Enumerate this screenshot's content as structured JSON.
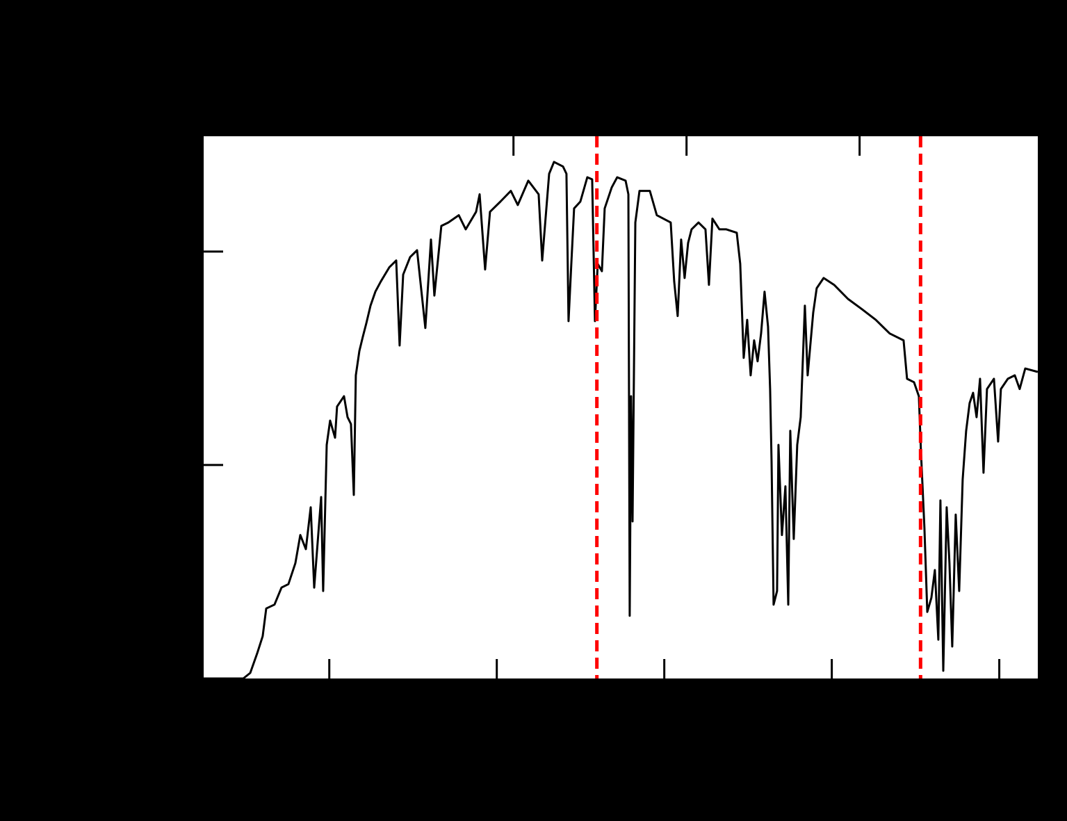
{
  "chart_data": {
    "type": "line",
    "color": "#000000",
    "x": [
      250,
      297.3,
      305.6,
      313.9,
      320.5,
      324.7,
      334.6,
      343,
      351.2,
      359.5,
      365.4,
      372,
      377.8,
      382,
      386.1,
      390.3,
      392.7,
      396.9,
      401,
      406.9,
      409.3,
      417.6,
      421.8,
      425.9,
      429.3,
      431.7,
      435.9,
      440,
      444.2,
      449.2,
      455,
      461.6,
      471.6,
      479.9,
      484,
      488.2,
      496.5,
      504.8,
      514.7,
      521.4,
      525.5,
      533.8,
      542.1,
      554.6,
      562.9,
      575.3,
      579.5,
      586.1,
      591.9,
      604.3,
      616.8,
      625.1,
      637.6,
      650,
      654.2,
      662.5,
      668.3,
      679.1,
      683.2,
      685.7,
      689,
      692.3,
      699.8,
      708.1,
      713.9,
      717.2,
      720.5,
      725.5,
      728.8,
      737.2,
      743.8,
      753.8,
      757.1,
      758.7,
      760.4,
      762.1,
      765.4,
      770.4,
      782.8,
      791.1,
      807.7,
      811.8,
      816,
      820.1,
      824.3,
      828.4,
      832.6,
      840.9,
      849.2,
      853.3,
      857.5,
      865.8,
      874.1,
      886.5,
      890.7,
      894.8,
      899,
      903.1,
      907.3,
      911.4,
      915.6,
      919.7,
      923.9,
      926.4,
      928.1,
      930.5,
      934.7,
      936.3,
      940.5,
      944.6,
      948,
      950.4,
      954.6,
      958.7,
      962.9,
      967.9,
      971.2,
      977.8,
      982,
      990.3,
      1002.7,
      1019.3,
      1035.9,
      1052.5,
      1069.1,
      1085.7,
      1089.9,
      1098.2,
      1104,
      1106.5,
      1110.6,
      1114,
      1118.9,
      1123.1,
      1127.2,
      1129.7,
      1133.1,
      1137.2,
      1140.5,
      1143.8,
      1148,
      1152.1,
      1156.3,
      1160.4,
      1164.6,
      1168.7,
      1172.9,
      1177,
      1181.2,
      1185.3,
      1193.6,
      1198.6,
      1201.9,
      1210.2,
      1218.5,
      1224.3,
      1231,
      1245.9
    ],
    "values": [
      0,
      0,
      0.013,
      0.059,
      0.099,
      0.164,
      0.173,
      0.213,
      0.221,
      0.27,
      0.336,
      0.303,
      0.401,
      0.213,
      0.319,
      0.425,
      0.205,
      0.547,
      0.604,
      0.564,
      0.637,
      0.661,
      0.612,
      0.596,
      0.43,
      0.71,
      0.767,
      0.8,
      0.832,
      0.873,
      0.906,
      0.93,
      0.963,
      0.979,
      0.78,
      0.946,
      0.987,
      1.003,
      0.821,
      1.028,
      0.897,
      1.06,
      1.068,
      1.085,
      1.052,
      1.093,
      1.134,
      0.958,
      1.093,
      1.117,
      1.142,
      1.109,
      1.166,
      1.134,
      0.979,
      1.182,
      1.21,
      1.199,
      1.182,
      0.837,
      0.971,
      1.101,
      1.117,
      1.174,
      1.169,
      0.837,
      0.971,
      0.954,
      1.101,
      1.15,
      1.174,
      1.166,
      1.134,
      0.147,
      0.661,
      0.368,
      1.068,
      1.142,
      1.142,
      1.085,
      1.068,
      0.93,
      0.849,
      1.028,
      0.938,
      1.02,
      1.052,
      1.068,
      1.052,
      0.922,
      1.077,
      1.052,
      1.052,
      1.044,
      0.971,
      0.751,
      0.84,
      0.71,
      0.792,
      0.743,
      0.808,
      0.906,
      0.824,
      0.678,
      0.507,
      0.173,
      0.205,
      0.547,
      0.336,
      0.45,
      0.173,
      0.58,
      0.327,
      0.547,
      0.612,
      0.873,
      0.71,
      0.857,
      0.914,
      0.938,
      0.922,
      0.889,
      0.865,
      0.84,
      0.808,
      0.792,
      0.702,
      0.694,
      0.661,
      0.531,
      0.352,
      0.156,
      0.189,
      0.254,
      0.091,
      0.417,
      0.018,
      0.401,
      0.27,
      0.075,
      0.384,
      0.205,
      0.466,
      0.58,
      0.645,
      0.669,
      0.612,
      0.702,
      0.482,
      0.678,
      0.702,
      0.555,
      0.678,
      0.702,
      0.71,
      0.678,
      0.726,
      0.718
    ],
    "xlim": [
      250,
      1246
    ],
    "ylim": [
      0,
      1.27
    ],
    "xticks": [
      400,
      600,
      800,
      1000,
      1200
    ],
    "x2ticks": [
      2,
      1.5,
      1.2
    ],
    "yticks": [
      0.5,
      1
    ],
    "vlines": [
      719.5,
      1106
    ],
    "vline_color": "#ff0000"
  }
}
